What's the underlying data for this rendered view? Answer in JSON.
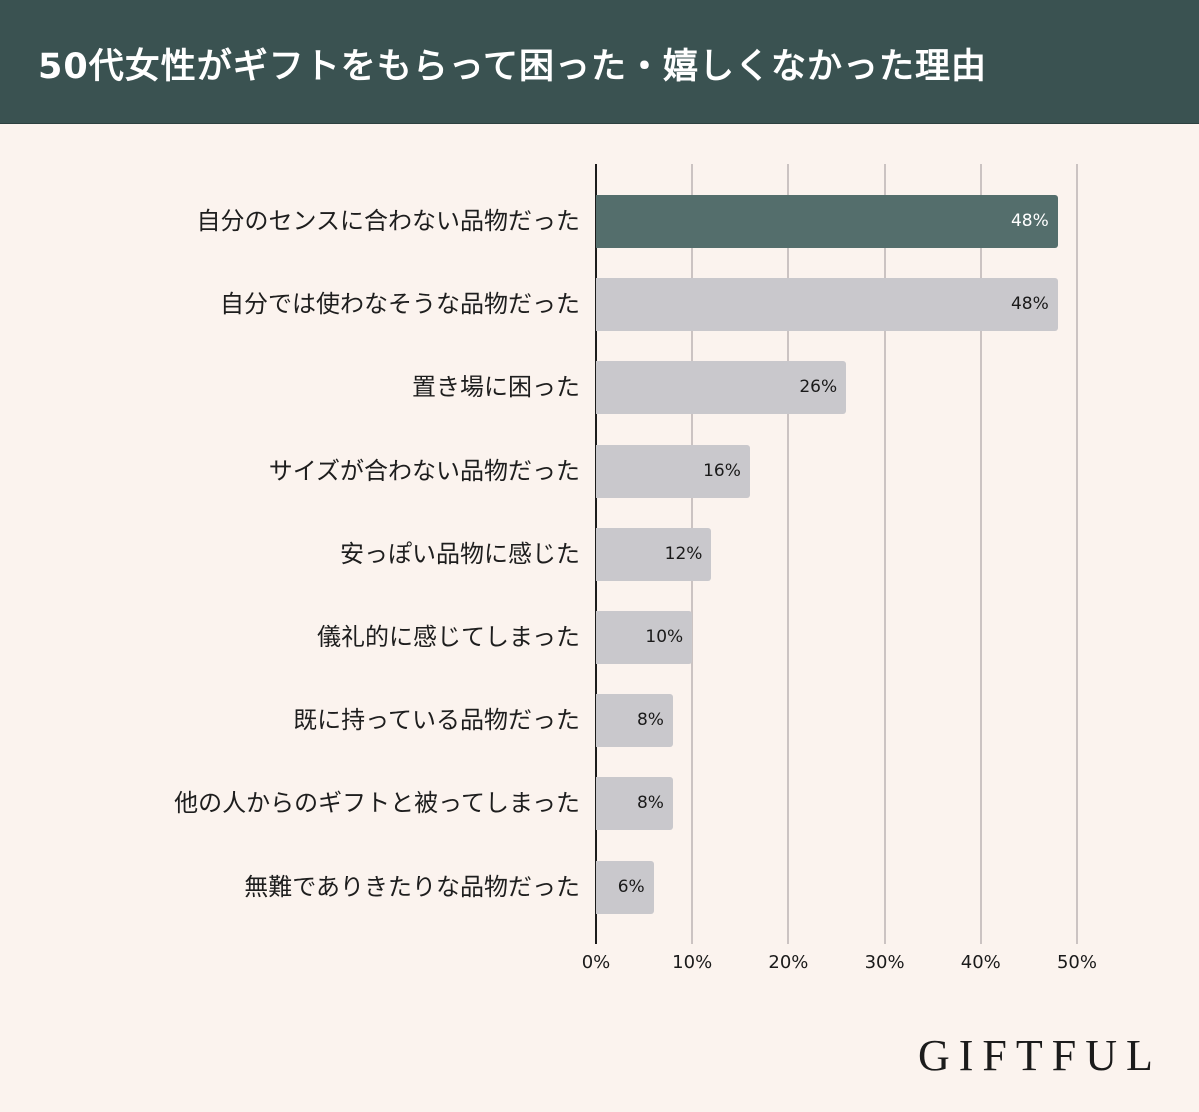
{
  "header": {
    "title": "50代女性がギフトをもらって困った・嬉しくなかった理由"
  },
  "chart_data": {
    "type": "bar",
    "orientation": "horizontal",
    "title": "50代女性がギフトをもらって困った・嬉しくなかった理由",
    "xlabel": "",
    "ylabel": "",
    "xlim": [
      0,
      50
    ],
    "x_ticks": [
      "0%",
      "10%",
      "20%",
      "30%",
      "40%",
      "50%"
    ],
    "grid": true,
    "legend": null,
    "categories": [
      "自分のセンスに合わない品物だった",
      "自分では使わなそうな品物だった",
      "置き場に困った",
      "サイズが合わない品物だった",
      "安っぽい品物に感じた",
      "儀礼的に感じてしまった",
      "既に持っている品物だった",
      "他の人からのギフトと被ってしまった",
      "無難でありきたりな品物だった"
    ],
    "values": [
      48,
      48,
      26,
      16,
      12,
      10,
      8,
      8,
      6
    ],
    "value_labels": [
      "48%",
      "48%",
      "26%",
      "16%",
      "12%",
      "10%",
      "8%",
      "8%",
      "6%"
    ],
    "highlight_index": 0,
    "colors": {
      "highlight": "#546e6c",
      "default": "#c9c8cc",
      "header": "#3a5251",
      "background": "#fbf3ee"
    }
  },
  "brand": {
    "logo_text": "GIFTFUL"
  }
}
